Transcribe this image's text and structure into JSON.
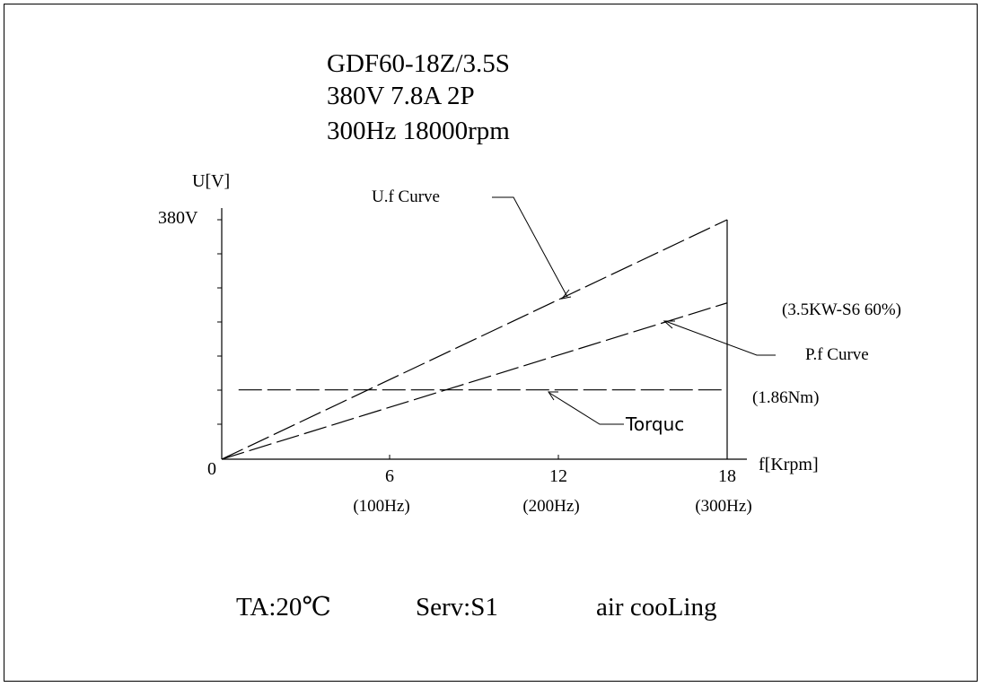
{
  "header": {
    "model": "GDF60-18Z/3.5S",
    "electrical": "380V 7.8A  2P",
    "speed": "300Hz    18000rpm"
  },
  "chart_data": {
    "type": "line",
    "xlabel": "f[Krpm]",
    "ylabel": "U[V]",
    "x_ticks": [
      "6",
      "12",
      "18"
    ],
    "x_subticks": [
      "(100Hz)",
      "(200Hz)",
      "(300Hz)"
    ],
    "origin_label": "0",
    "y_tick_label": "380V",
    "xlim": [
      0,
      18
    ],
    "ylim": [
      0,
      380
    ],
    "series": [
      {
        "name": "U.f Curve",
        "x": [
          0,
          18
        ],
        "y": [
          0,
          380
        ]
      },
      {
        "name": "P.f Curve",
        "x": [
          0,
          18
        ],
        "y": [
          0,
          248
        ]
      },
      {
        "name": "Torquc",
        "x": [
          0.6,
          18
        ],
        "y": [
          110,
          110
        ]
      }
    ],
    "annotations": {
      "power": "(3.5KW-S6 60%)",
      "torque": "(1.86Nm)"
    },
    "style": {
      "line_color": "#000000",
      "dashed": true,
      "grid": false
    }
  },
  "footer": {
    "ambient": "TA:20℃",
    "duty": "Serv:S1",
    "cooling": "air cooLing"
  }
}
